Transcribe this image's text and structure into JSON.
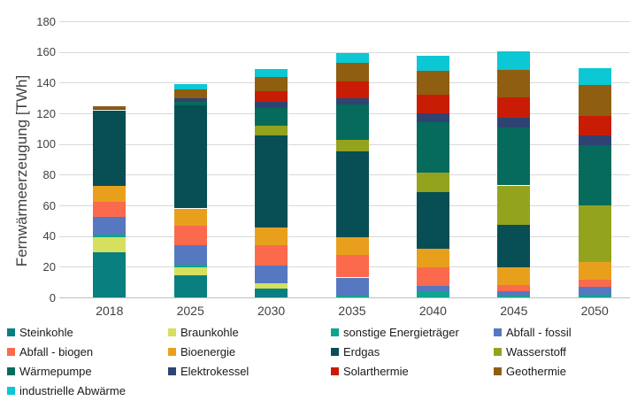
{
  "chart_data": {
    "type": "bar",
    "variant": "stacked-column",
    "title": "",
    "ylabel": "Fernwärmeerzeugung [TWh]",
    "xlabel": "",
    "ylim": [
      0,
      180
    ],
    "ytick_step": 20,
    "yticks": [
      0,
      20,
      40,
      60,
      80,
      100,
      120,
      140,
      160,
      180
    ],
    "grid": true,
    "legend_position": "bottom",
    "categories": [
      "2018",
      "2025",
      "2030",
      "2035",
      "2040",
      "2045",
      "2050"
    ],
    "series": [
      {
        "name": "Steinkohle",
        "color": "#0a7f7f",
        "values": [
          29.5,
          14.5,
          6,
          0,
          0,
          0,
          0
        ]
      },
      {
        "name": "Braunkohle",
        "color": "#d4e05e",
        "values": [
          9.5,
          5,
          3,
          0,
          0,
          0,
          0
        ]
      },
      {
        "name": "sonstige Energieträger",
        "color": "#0ca58f",
        "values": [
          2,
          2,
          0,
          1,
          4,
          1,
          1.5
        ]
      },
      {
        "name": "Abfall - fossil",
        "color": "#5578c1",
        "values": [
          11.5,
          12.5,
          12,
          12,
          3.5,
          3,
          5.5
        ]
      },
      {
        "name": "Abfall - biogen",
        "color": "#fb6a4c",
        "values": [
          10,
          13,
          13,
          14.5,
          12,
          4,
          4.5
        ]
      },
      {
        "name": "Bioenergie",
        "color": "#e8a01c",
        "values": [
          10,
          11,
          11.5,
          11.5,
          12,
          11.5,
          11.5
        ]
      },
      {
        "name": "Erdgas",
        "color": "#074f54",
        "values": [
          49.5,
          67,
          60,
          56,
          37,
          28,
          0
        ]
      },
      {
        "name": "Wasserstoff",
        "color": "#94a31d",
        "values": [
          0,
          0,
          6.5,
          7.5,
          13,
          25.5,
          37
        ]
      },
      {
        "name": "Wärmepumpe",
        "color": "#066a5c",
        "values": [
          0,
          2.5,
          11.5,
          23.5,
          33,
          38,
          39
        ]
      },
      {
        "name": "Elektrokessel",
        "color": "#2e4372",
        "values": [
          1,
          2.5,
          4,
          4,
          5.5,
          6,
          6.5
        ]
      },
      {
        "name": "Solarthermie",
        "color": "#c81d04",
        "values": [
          0,
          0,
          7,
          11,
          12,
          13.5,
          13
        ]
      },
      {
        "name": "Geothermie",
        "color": "#8f5e10",
        "values": [
          1.5,
          5.5,
          9,
          12,
          15.5,
          18,
          20
        ]
      },
      {
        "name": "industrielle Abwärme",
        "color": "#0cc7d4",
        "values": [
          0,
          3.5,
          5.5,
          6.5,
          10,
          12,
          11
        ]
      }
    ],
    "totals": [
      124.5,
      139,
      149,
      159.5,
      157.5,
      160.5,
      149.5
    ]
  }
}
